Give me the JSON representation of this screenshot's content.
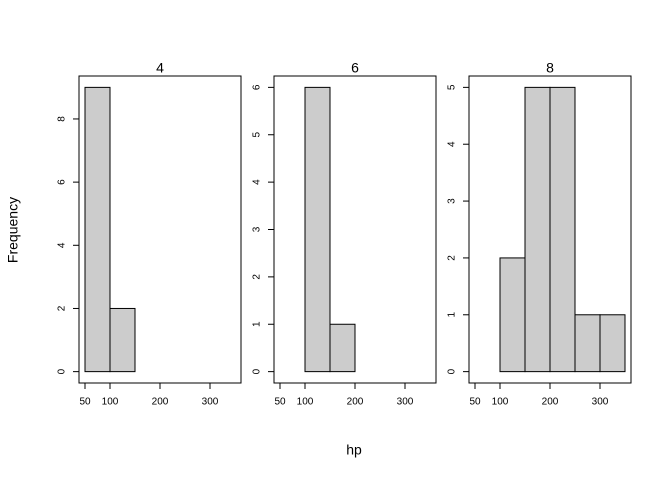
{
  "x_label": "hp",
  "y_label": "Frequency",
  "chart_data": [
    {
      "type": "histogram",
      "title": "4",
      "bins": [
        50,
        100,
        150,
        200,
        250,
        300,
        350
      ],
      "values": [
        9,
        2,
        0,
        0,
        0,
        0
      ],
      "color": "#cccccc",
      "xlim": [
        38,
        362
      ],
      "xticks": [
        50,
        100,
        200,
        300
      ],
      "ylim": [
        -0.36,
        9.36
      ],
      "yticks": [
        0,
        2,
        4,
        6,
        8
      ]
    },
    {
      "type": "histogram",
      "title": "6",
      "bins": [
        50,
        100,
        150,
        200,
        250,
        300,
        350
      ],
      "values": [
        0,
        6,
        1,
        0,
        0,
        0
      ],
      "color": "#cccccc",
      "xlim": [
        38,
        362
      ],
      "xticks": [
        50,
        100,
        200,
        300
      ],
      "ylim": [
        -0.24,
        6.24
      ],
      "yticks": [
        0,
        1,
        2,
        3,
        4,
        5,
        6
      ]
    },
    {
      "type": "histogram",
      "title": "8",
      "bins": [
        50,
        100,
        150,
        200,
        250,
        300,
        350
      ],
      "values": [
        0,
        2,
        5,
        5,
        1,
        1
      ],
      "color": "#cccccc",
      "xlim": [
        38,
        362
      ],
      "xticks": [
        50,
        100,
        200,
        300
      ],
      "ylim": [
        -0.2,
        5.2
      ],
      "yticks": [
        0,
        1,
        2,
        3,
        4,
        5
      ]
    }
  ]
}
